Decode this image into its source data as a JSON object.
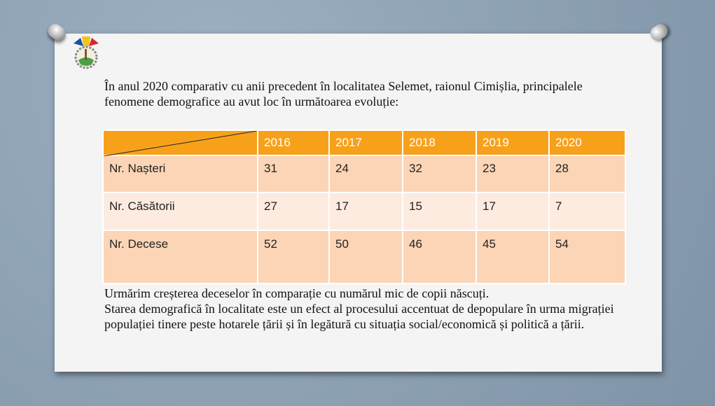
{
  "intro": "În anul 2020 comparativ cu anii precedent în localitatea Selemet, raionul Cimișlia, principalele fenomene demografice au avut loc în următoarea evoluție:",
  "table": {
    "years": [
      "2016",
      "2017",
      "2018",
      "2019",
      "2020"
    ],
    "rows": [
      {
        "label": "Nr. Nașteri",
        "values": [
          "31",
          "24",
          "32",
          "23",
          "28"
        ]
      },
      {
        "label": "Nr. Căsătorii",
        "values": [
          "27",
          "17",
          "15",
          "17",
          "7"
        ]
      },
      {
        "label": "Nr. Decese",
        "values": [
          "52",
          "50",
          "46",
          "45",
          "54"
        ]
      }
    ]
  },
  "outro": {
    "line1": "Urmărim creșterea deceselor în comparație cu numărul mic de copii născuți.",
    "line2": "Starea demografică în localitate este un efect al procesului accentuat de depopulare în urma migrației populației tinere peste hotarele țării și în legătură cu situația social/economică și politică a țării."
  },
  "colors": {
    "header": "#f7a11a",
    "row_dark": "#fbd5b5",
    "row_light": "#fdebe0"
  }
}
